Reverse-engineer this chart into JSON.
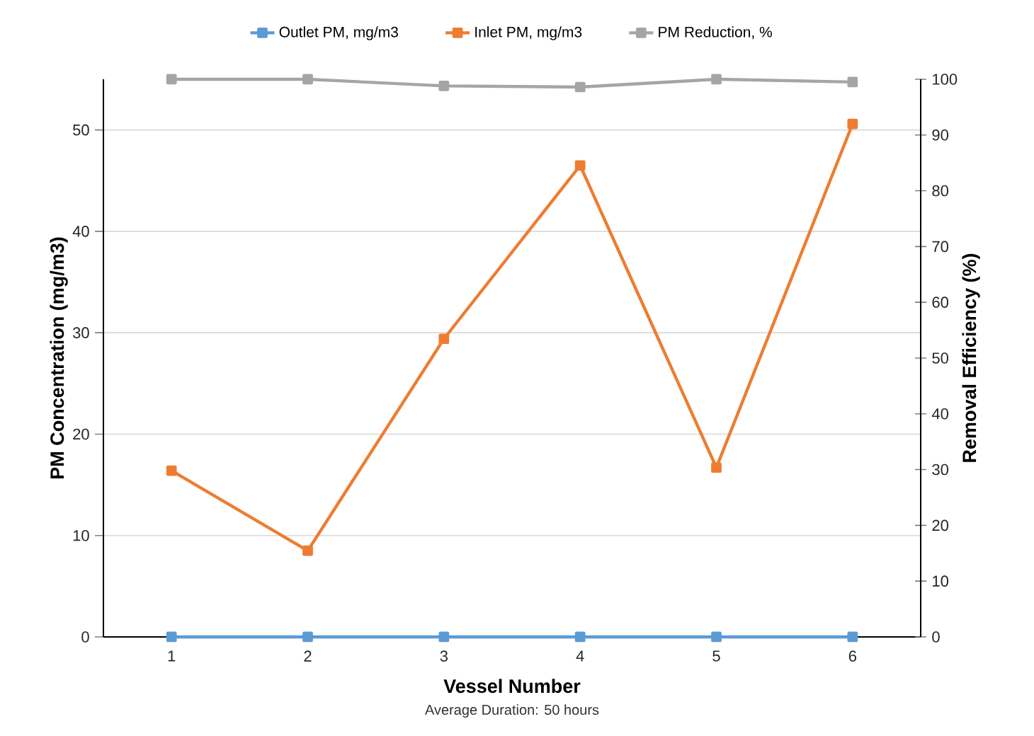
{
  "chart_data": {
    "type": "line",
    "xlabel": "Vessel Number",
    "ylabel": "PM Concentration (mg/m3)",
    "y2label": "Removal Efficiency (%)",
    "annotations": [
      "Average Duration: 50 hours"
    ],
    "categories": [
      "1",
      "2",
      "3",
      "4",
      "5",
      "6"
    ],
    "series": [
      {
        "name": "Outlet PM, mg/m3",
        "color": "#5b9bd5",
        "values": [
          0,
          0,
          0,
          0,
          0,
          0
        ]
      },
      {
        "name": "Inlet PM, mg/m3",
        "color": "#ed7d31",
        "values": [
          16.4,
          8.5,
          29.4,
          46.5,
          16.7,
          50.6
        ]
      },
      {
        "name": "PM Reduction, %",
        "color": "#a5a5a5",
        "axis": "y2",
        "values": [
          100,
          100,
          98.8,
          98.6,
          100,
          99.5
        ]
      }
    ],
    "ylim": [
      0,
      55
    ],
    "yticks": [
      0,
      10,
      20,
      30,
      40,
      50
    ],
    "y2lim": [
      0,
      100
    ],
    "y2ticks": [
      0,
      10,
      20,
      30,
      40,
      50,
      60,
      70,
      80,
      90,
      100
    ],
    "grid": "y",
    "legend": "top",
    "marker": "square",
    "line_style": "solid"
  }
}
